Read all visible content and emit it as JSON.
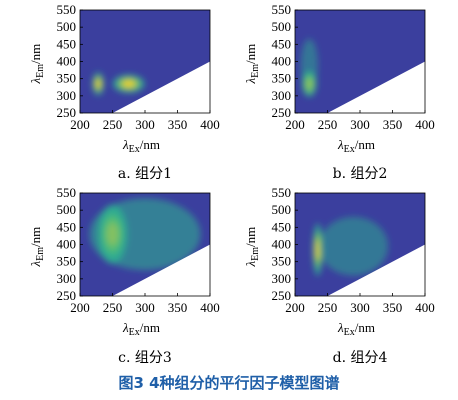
{
  "figure": {
    "caption": "图3   4种组分的平行因子模型图谱",
    "caption_color": "#1f5fa8"
  },
  "colors": {
    "background_field": "#3b3f9e",
    "peak_high": "#f6d02a",
    "peak_mid": "#2db58e",
    "masked_region": "#ffffff"
  },
  "chart_data": [
    {
      "type": "heatmap",
      "caption": "a. 组分1",
      "xlabel_main": "λ",
      "xlabel_sub": "Ex",
      "xlabel_unit": "/nm",
      "ylabel_main": "λ",
      "ylabel_sub": "Em",
      "ylabel_unit": "/nm",
      "xlim": [
        200,
        400
      ],
      "ylim": [
        250,
        550
      ],
      "xticks": [
        200,
        250,
        300,
        350,
        400
      ],
      "yticks": [
        250,
        300,
        350,
        400,
        450,
        500,
        550
      ],
      "peaks": [
        {
          "ex": 228,
          "em": 335,
          "intensity": 0.7,
          "sx": 5,
          "sy": 18
        },
        {
          "ex": 275,
          "em": 335,
          "intensity": 1.0,
          "sx": 13,
          "sy": 14
        }
      ]
    },
    {
      "type": "heatmap",
      "caption": "b. 组分2",
      "xlabel_main": "λ",
      "xlabel_sub": "Ex",
      "xlabel_unit": "/nm",
      "ylabel_main": "λ",
      "ylabel_sub": "Em",
      "ylabel_unit": "/nm",
      "xlim": [
        200,
        400
      ],
      "ylim": [
        250,
        550
      ],
      "xticks": [
        200,
        250,
        300,
        350,
        400
      ],
      "yticks": [
        250,
        300,
        350,
        400,
        450,
        500,
        550
      ],
      "peaks": [
        {
          "ex": 222,
          "em": 335,
          "intensity": 1.0,
          "sx": 6,
          "sy": 20
        },
        {
          "ex": 222,
          "em": 390,
          "intensity": 0.25,
          "sx": 7,
          "sy": 40
        }
      ]
    },
    {
      "type": "heatmap",
      "caption": "c. 组分3",
      "xlabel_main": "λ",
      "xlabel_sub": "Ex",
      "xlabel_unit": "/nm",
      "ylabel_main": "λ",
      "ylabel_sub": "Em",
      "ylabel_unit": "/nm",
      "xlim": [
        200,
        400
      ],
      "ylim": [
        250,
        550
      ],
      "xticks": [
        200,
        250,
        300,
        350,
        400
      ],
      "yticks": [
        250,
        300,
        350,
        400,
        450,
        500,
        550
      ],
      "peaks": [
        {
          "ex": 250,
          "em": 430,
          "intensity": 1.0,
          "sx": 12,
          "sy": 45
        },
        {
          "ex": 300,
          "em": 430,
          "intensity": 0.45,
          "sx": 45,
          "sy": 55
        }
      ]
    },
    {
      "type": "heatmap",
      "caption": "d. 组分4",
      "xlabel_main": "λ",
      "xlabel_sub": "Ex",
      "xlabel_unit": "/nm",
      "ylabel_main": "λ",
      "ylabel_sub": "Em",
      "ylabel_unit": "/nm",
      "xlim": [
        200,
        400
      ],
      "ylim": [
        250,
        550
      ],
      "xticks": [
        200,
        250,
        300,
        350,
        400
      ],
      "yticks": [
        250,
        300,
        350,
        400,
        450,
        500,
        550
      ],
      "peaks": [
        {
          "ex": 235,
          "em": 385,
          "intensity": 1.0,
          "sx": 4,
          "sy": 40
        },
        {
          "ex": 290,
          "em": 395,
          "intensity": 0.3,
          "sx": 28,
          "sy": 45
        }
      ]
    }
  ]
}
